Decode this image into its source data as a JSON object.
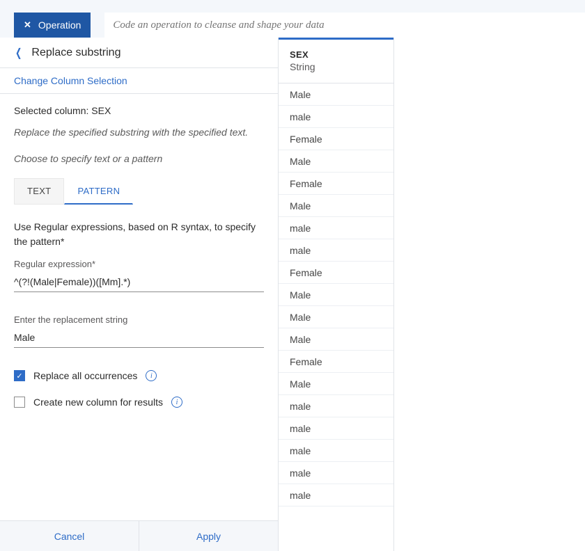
{
  "colors": {
    "primary": "#2e6cc7",
    "primary_dark": "#1f57a4",
    "text": "#2b2b2b",
    "muted": "#595859",
    "border": "#e0e3e8",
    "bg": "#f4f7fb"
  },
  "topbar": {
    "operation_label": "Operation",
    "code_placeholder": "Code an operation to cleanse and shape your data"
  },
  "panel": {
    "title": "Replace substring",
    "change_column_link": "Change Column Selection",
    "selected_column_label": "Selected column: SEX",
    "description": "Replace the specified substring with the specified text.",
    "choose_text": "Choose to specify text or a pattern",
    "tabs": {
      "text": "TEXT",
      "pattern": "PATTERN",
      "active": "pattern"
    },
    "regex_instruction": "Use Regular expressions, based on R syntax, to specify the pattern*",
    "regex_label": "Regular expression*",
    "regex_value": "^(?!(Male|Female))([Mm].*)",
    "replacement_label": "Enter the replacement string",
    "replacement_value": "Male",
    "checkbox_replace_all": {
      "label": "Replace all occurrences",
      "checked": true
    },
    "checkbox_new_column": {
      "label": "Create new column for results",
      "checked": false
    }
  },
  "footer": {
    "cancel": "Cancel",
    "apply": "Apply"
  },
  "preview": {
    "column": {
      "name": "SEX",
      "type": "String"
    },
    "rows": [
      "Male",
      "male",
      "Female",
      "Male",
      "Female",
      "Male",
      "male",
      "male",
      "Female",
      "Male",
      "Male",
      "Male",
      "Female",
      "Male",
      "male",
      "male",
      "male",
      "male",
      "male"
    ]
  }
}
